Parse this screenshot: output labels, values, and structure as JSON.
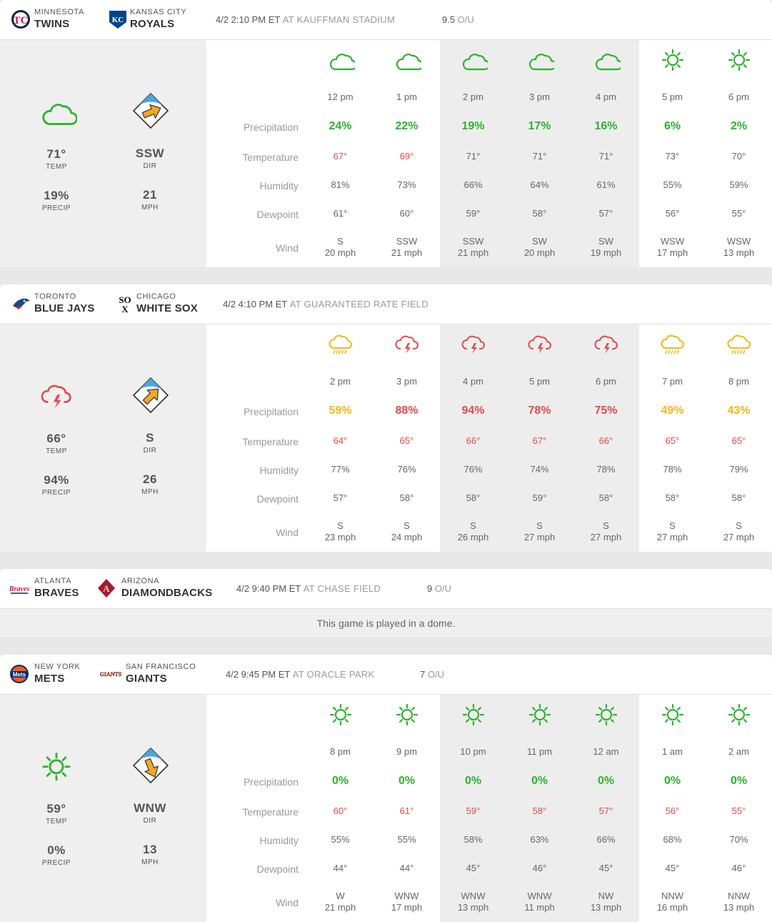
{
  "colors": {
    "green": "#2db32d",
    "red": "#e24b4b",
    "orange": "#f2b81c",
    "temp_red": "#e24b4b",
    "gray": "#666666"
  },
  "row_labels": [
    "Precipitation",
    "Temperature",
    "Humidity",
    "Dewpoint",
    "Wind"
  ],
  "games": [
    {
      "away": {
        "city": "MINNESOTA",
        "name": "TWINS",
        "logo": "twins-logo"
      },
      "home": {
        "city": "KANSAS CITY",
        "name": "ROYALS",
        "logo": "royals-logo"
      },
      "time": "4/2 2:10 PM ET",
      "venue": "AT KAUFFMAN STADIUM",
      "ou_value": "9.5",
      "ou_label": "O/U",
      "summary": {
        "icon": "cloud-icon",
        "temp": "71°",
        "temp_label": "TEMP",
        "precip": "19%",
        "precip_label": "PRECIP",
        "dir": "SSW",
        "dir_label": "DIR",
        "mph": "21",
        "mph_label": "MPH"
      },
      "hours": [
        {
          "time": "12 pm",
          "icon": "cloud-icon",
          "precip": "24%",
          "precip_color": "green",
          "temp": "67°",
          "temp_hot": true,
          "humidity": "81%",
          "dewpoint": "61°",
          "wind_dir": "S",
          "wind_speed": "20 mph"
        },
        {
          "time": "1 pm",
          "icon": "cloud-icon",
          "precip": "22%",
          "precip_color": "green",
          "temp": "69°",
          "temp_hot": true,
          "humidity": "73%",
          "dewpoint": "60°",
          "wind_dir": "SSW",
          "wind_speed": "21 mph"
        },
        {
          "time": "2 pm",
          "icon": "cloud-icon",
          "precip": "19%",
          "precip_color": "green",
          "temp": "71°",
          "temp_hot": false,
          "humidity": "66%",
          "dewpoint": "59°",
          "wind_dir": "SSW",
          "wind_speed": "21 mph"
        },
        {
          "time": "3 pm",
          "icon": "cloud-icon",
          "precip": "17%",
          "precip_color": "green",
          "temp": "71°",
          "temp_hot": false,
          "humidity": "64%",
          "dewpoint": "58°",
          "wind_dir": "SW",
          "wind_speed": "20 mph"
        },
        {
          "time": "4 pm",
          "icon": "cloud-icon",
          "precip": "16%",
          "precip_color": "green",
          "temp": "71°",
          "temp_hot": false,
          "humidity": "61%",
          "dewpoint": "57°",
          "wind_dir": "SW",
          "wind_speed": "19 mph"
        },
        {
          "time": "5 pm",
          "icon": "sun-icon",
          "precip": "6%",
          "precip_color": "green",
          "temp": "73°",
          "temp_hot": false,
          "humidity": "55%",
          "dewpoint": "56°",
          "wind_dir": "WSW",
          "wind_speed": "17 mph"
        },
        {
          "time": "6 pm",
          "icon": "sun-icon",
          "precip": "2%",
          "precip_color": "green",
          "temp": "70°",
          "temp_hot": false,
          "humidity": "59%",
          "dewpoint": "55°",
          "wind_dir": "WSW",
          "wind_speed": "13 mph"
        }
      ]
    },
    {
      "away": {
        "city": "TORONTO",
        "name": "BLUE JAYS",
        "logo": "bluejays-logo"
      },
      "home": {
        "city": "CHICAGO",
        "name": "WHITE SOX",
        "logo": "whitesox-logo"
      },
      "time": "4/2 4:10 PM ET",
      "venue": "AT GUARANTEED RATE FIELD",
      "ou_value": "",
      "ou_label": "",
      "summary": {
        "icon": "storm-icon",
        "temp": "66°",
        "temp_label": "TEMP",
        "precip": "94%",
        "precip_label": "PRECIP",
        "dir": "S",
        "dir_label": "DIR",
        "mph": "26",
        "mph_label": "MPH"
      },
      "hours": [
        {
          "time": "2 pm",
          "icon": "rain-icon",
          "precip": "59%",
          "precip_color": "orange",
          "temp": "64°",
          "temp_hot": true,
          "humidity": "77%",
          "dewpoint": "57°",
          "wind_dir": "S",
          "wind_speed": "23 mph"
        },
        {
          "time": "3 pm",
          "icon": "storm-icon",
          "precip": "88%",
          "precip_color": "red",
          "temp": "65°",
          "temp_hot": true,
          "humidity": "76%",
          "dewpoint": "58°",
          "wind_dir": "S",
          "wind_speed": "24 mph"
        },
        {
          "time": "4 pm",
          "icon": "storm-icon",
          "precip": "94%",
          "precip_color": "red",
          "temp": "66°",
          "temp_hot": true,
          "humidity": "76%",
          "dewpoint": "58°",
          "wind_dir": "S",
          "wind_speed": "26 mph"
        },
        {
          "time": "5 pm",
          "icon": "storm-icon",
          "precip": "78%",
          "precip_color": "red",
          "temp": "67°",
          "temp_hot": true,
          "humidity": "74%",
          "dewpoint": "59°",
          "wind_dir": "S",
          "wind_speed": "27 mph"
        },
        {
          "time": "6 pm",
          "icon": "storm-icon",
          "precip": "75%",
          "precip_color": "red",
          "temp": "66°",
          "temp_hot": true,
          "humidity": "78%",
          "dewpoint": "58°",
          "wind_dir": "S",
          "wind_speed": "27 mph"
        },
        {
          "time": "7 pm",
          "icon": "rain-icon",
          "precip": "49%",
          "precip_color": "orange",
          "temp": "65°",
          "temp_hot": true,
          "humidity": "78%",
          "dewpoint": "58°",
          "wind_dir": "S",
          "wind_speed": "27 mph"
        },
        {
          "time": "8 pm",
          "icon": "rain-icon",
          "precip": "43%",
          "precip_color": "orange",
          "temp": "65°",
          "temp_hot": true,
          "humidity": "79%",
          "dewpoint": "58°",
          "wind_dir": "S",
          "wind_speed": "27 mph"
        }
      ]
    },
    {
      "away": {
        "city": "ATLANTA",
        "name": "BRAVES",
        "logo": "braves-logo"
      },
      "home": {
        "city": "ARIZONA",
        "name": "DIAMONDBACKS",
        "logo": "dbacks-logo"
      },
      "time": "4/2 9:40 PM ET",
      "venue": "AT CHASE FIELD",
      "ou_value": "9",
      "ou_label": "O/U",
      "dome_note": "This game is played in a dome."
    },
    {
      "away": {
        "city": "NEW YORK",
        "name": "METS",
        "logo": "mets-logo"
      },
      "home": {
        "city": "SAN FRANCISCO",
        "name": "GIANTS",
        "logo": "giants-logo"
      },
      "time": "4/2 9:45 PM ET",
      "venue": "AT ORACLE PARK",
      "ou_value": "7",
      "ou_label": "O/U",
      "summary": {
        "icon": "sun-icon",
        "temp": "59°",
        "temp_label": "TEMP",
        "precip": "0%",
        "precip_label": "PRECIP",
        "dir": "WNW",
        "dir_label": "DIR",
        "mph": "13",
        "mph_label": "MPH"
      },
      "hours": [
        {
          "time": "8 pm",
          "icon": "sun-icon",
          "precip": "0%",
          "precip_color": "green",
          "temp": "60°",
          "temp_hot": true,
          "humidity": "55%",
          "dewpoint": "44°",
          "wind_dir": "W",
          "wind_speed": "21 mph"
        },
        {
          "time": "9 pm",
          "icon": "sun-icon",
          "precip": "0%",
          "precip_color": "green",
          "temp": "61°",
          "temp_hot": true,
          "humidity": "55%",
          "dewpoint": "44°",
          "wind_dir": "WNW",
          "wind_speed": "17 mph"
        },
        {
          "time": "10 pm",
          "icon": "sun-icon",
          "precip": "0%",
          "precip_color": "green",
          "temp": "59°",
          "temp_hot": true,
          "humidity": "58%",
          "dewpoint": "45°",
          "wind_dir": "WNW",
          "wind_speed": "13 mph"
        },
        {
          "time": "11 pm",
          "icon": "sun-icon",
          "precip": "0%",
          "precip_color": "green",
          "temp": "58°",
          "temp_hot": true,
          "humidity": "63%",
          "dewpoint": "46°",
          "wind_dir": "WNW",
          "wind_speed": "11 mph"
        },
        {
          "time": "12 am",
          "icon": "sun-icon",
          "precip": "0%",
          "precip_color": "green",
          "temp": "57°",
          "temp_hot": true,
          "humidity": "66%",
          "dewpoint": "45°",
          "wind_dir": "NW",
          "wind_speed": "13 mph"
        },
        {
          "time": "1 am",
          "icon": "sun-icon",
          "precip": "0%",
          "precip_color": "green",
          "temp": "56°",
          "temp_hot": true,
          "humidity": "68%",
          "dewpoint": "45°",
          "wind_dir": "NNW",
          "wind_speed": "16 mph"
        },
        {
          "time": "2 am",
          "icon": "sun-icon",
          "precip": "0%",
          "precip_color": "green",
          "temp": "55°",
          "temp_hot": true,
          "humidity": "70%",
          "dewpoint": "46°",
          "wind_dir": "NNW",
          "wind_speed": "13 mph"
        }
      ]
    }
  ]
}
